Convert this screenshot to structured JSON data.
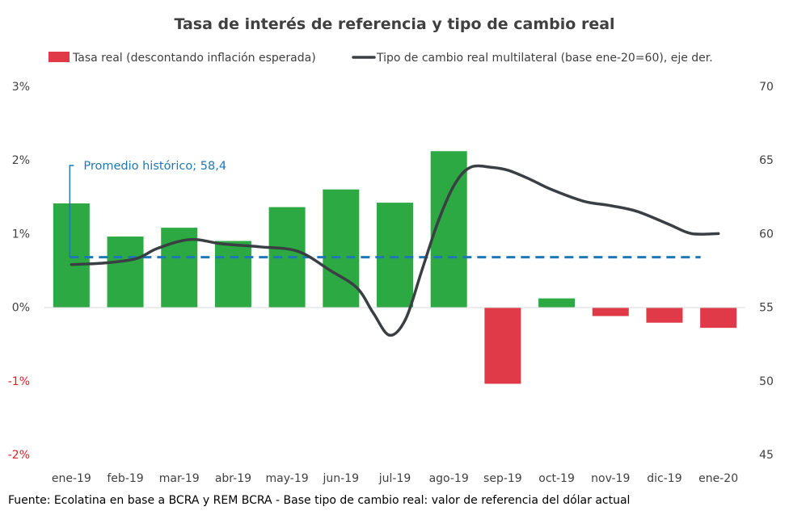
{
  "chart_data": {
    "type": "bar",
    "title": "Tasa de interés de referencia y tipo de cambio real",
    "source": "Fuente: Ecolatina en base a BCRA y REM BCRA - Base tipo de cambio real: valor de referencia del dólar actual",
    "categories": [
      "ene-19",
      "feb-19",
      "mar-19",
      "abr-19",
      "may-19",
      "jun-19",
      "jul-19",
      "ago-19",
      "sep-19",
      "oct-19",
      "nov-19",
      "dic-19",
      "ene-20"
    ],
    "y_left": {
      "ticks": [
        "3%",
        "2%",
        "1%",
        "0%",
        "-1%",
        "-2%"
      ],
      "tick_values": [
        3,
        2,
        1,
        0,
        -1,
        -2
      ],
      "ylim": [
        -2,
        3
      ]
    },
    "y_right": {
      "ticks": [
        "70",
        "65",
        "60",
        "55",
        "50",
        "45"
      ],
      "tick_values": [
        70,
        65,
        60,
        55,
        50,
        45
      ],
      "ylim": [
        45,
        70
      ]
    },
    "series": [
      {
        "name": "Tasa real (descontando inflación esperada)",
        "kind": "bar",
        "axis": "left",
        "values": [
          1.41,
          0.96,
          1.08,
          0.9,
          1.36,
          1.6,
          1.42,
          2.12,
          -1.04,
          0.12,
          -0.12,
          -0.21,
          -0.28
        ],
        "color_positive": "#2ca942",
        "color_negative": "#e03a48"
      },
      {
        "name": "Tipo de cambio real multilateral (base ene-20=60), eje der.",
        "kind": "line",
        "axis": "right",
        "x": [
          0,
          0.6,
          1.2,
          1.6,
          2.2,
          2.8,
          3.5,
          4.2,
          4.8,
          5.3,
          5.6,
          5.9,
          6.2,
          6.5,
          6.8,
          7.1,
          7.4,
          7.8,
          8.1,
          8.5,
          8.9,
          9.5,
          10.0,
          10.5,
          11.1,
          11.5,
          12.0
        ],
        "values": [
          57.9,
          58.0,
          58.3,
          59.0,
          59.6,
          59.3,
          59.1,
          58.8,
          57.5,
          56.3,
          54.6,
          53.1,
          54.2,
          57.5,
          60.8,
          63.3,
          64.5,
          64.5,
          64.3,
          63.7,
          63.0,
          62.2,
          61.9,
          61.5,
          60.6,
          60.0,
          60.0
        ],
        "color": "#3a3f44"
      },
      {
        "name": "Promedio histórico",
        "kind": "reference-line",
        "axis": "right",
        "value": 58.4,
        "label": "Promedio histórico; 58,4",
        "color": "#1f77b4"
      }
    ],
    "legend_position": "top",
    "grid": false
  }
}
